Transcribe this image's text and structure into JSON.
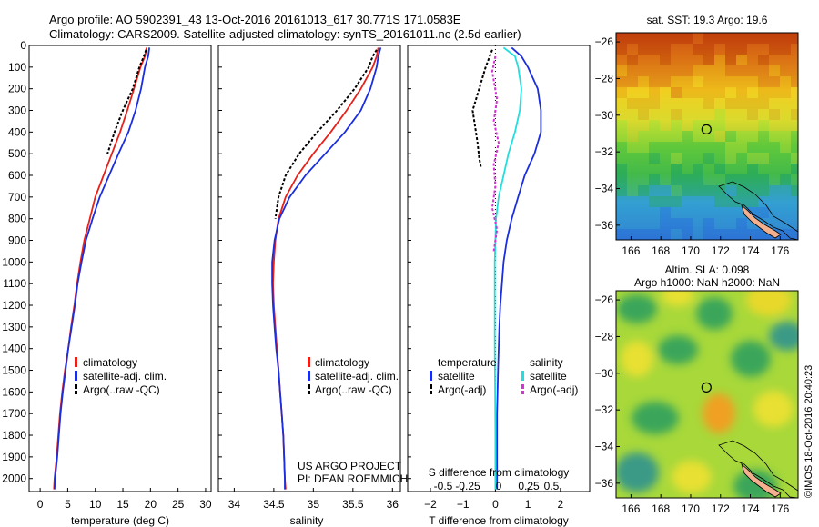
{
  "header": {
    "line1": "Argo profile: AO 5902391_43 13-Oct-2016 20161013_617 30.771S 171.0583E",
    "line2": "Climatology: CARS2009. Satellite-adjusted climatology: synTS_20161011.nc (2.5d earlier)"
  },
  "credits": {
    "project": "US ARGO PROJECT",
    "pi": "PI: DEAN ROEMMICH",
    "stamp": "©IMOS 18-Oct-2016 20:40:23"
  },
  "colors": {
    "climatology": "#e8201a",
    "satellite": "#1a2ee0",
    "argo": "#000000",
    "argo_salinity_diff": "#d633d6",
    "satellite_salinity_diff": "#22dede",
    "coast": "#f2b08e"
  },
  "chart_data": [
    {
      "type": "line",
      "id": "temperature",
      "xlabel": "temperature (deg C)",
      "ylabel": "",
      "xlim": [
        -2,
        31
      ],
      "ylim": [
        2060,
        0
      ],
      "xticks": [
        0,
        5,
        10,
        15,
        20,
        25,
        30
      ],
      "yticks": [
        0,
        100,
        200,
        300,
        400,
        500,
        600,
        700,
        800,
        900,
        1000,
        1100,
        1200,
        1300,
        1400,
        1500,
        1600,
        1700,
        1800,
        1900,
        2000
      ],
      "y_inverted": true,
      "legend": [
        "climatology",
        "satellite-adj. clim.",
        "Argo(..raw -QC)"
      ],
      "legend_position": "bottom-center",
      "series": [
        {
          "name": "climatology",
          "color": "#e8201a",
          "style": "solid",
          "x": [
            19.3,
            19.0,
            18.2,
            17.0,
            15.8,
            14.5,
            13.0,
            11.5,
            10.0,
            9.0,
            8.0,
            7.3,
            6.7,
            6.2,
            5.6,
            5.1,
            4.5,
            4.0,
            3.6,
            3.3,
            3.0,
            2.8,
            2.6,
            2.5
          ],
          "y": [
            10,
            50,
            100,
            200,
            300,
            400,
            500,
            600,
            700,
            800,
            900,
            1000,
            1100,
            1200,
            1300,
            1400,
            1500,
            1600,
            1700,
            1800,
            1900,
            1950,
            2000,
            2050
          ]
        },
        {
          "name": "satellite-adj. clim.",
          "color": "#1a2ee0",
          "style": "solid",
          "x": [
            19.8,
            19.6,
            19.0,
            18.3,
            17.3,
            16.0,
            14.2,
            12.5,
            10.8,
            9.5,
            8.3,
            7.5,
            6.8,
            6.3,
            5.7,
            5.1,
            4.6,
            4.1,
            3.7,
            3.4,
            3.1,
            2.9,
            2.7,
            2.6
          ],
          "y": [
            10,
            50,
            100,
            200,
            300,
            400,
            500,
            600,
            700,
            800,
            900,
            1000,
            1100,
            1200,
            1300,
            1400,
            1500,
            1600,
            1700,
            1800,
            1900,
            1950,
            2000,
            2050
          ]
        },
        {
          "name": "Argo(..raw -QC)",
          "color": "#000000",
          "style": "dashed",
          "x": [
            19.2,
            18.8,
            18.0,
            16.8,
            15.0,
            13.5,
            12.2
          ],
          "y": [
            20,
            50,
            100,
            200,
            300,
            400,
            500
          ]
        }
      ]
    },
    {
      "type": "line",
      "id": "salinity",
      "xlabel": "salinity",
      "ylabel": "",
      "xlim": [
        33.8,
        36.1
      ],
      "ylim": [
        2060,
        0
      ],
      "xticks": [
        34,
        34.5,
        35,
        35.5,
        36
      ],
      "xtick_labels": [
        "34",
        "34.5",
        "35",
        "35.5",
        "36"
      ],
      "y_inverted": true,
      "legend": [
        "climatology",
        "satellite-adj. clim.",
        "Argo(..raw -QC)"
      ],
      "legend_position": "bottom-center",
      "series": [
        {
          "name": "climatology",
          "color": "#e8201a",
          "style": "solid",
          "x": [
            35.82,
            35.8,
            35.75,
            35.6,
            35.42,
            35.22,
            35.0,
            34.8,
            34.65,
            34.56,
            34.52,
            34.5,
            34.49,
            34.5,
            34.52,
            34.54,
            34.56,
            34.58,
            34.6,
            34.62,
            34.63,
            34.64,
            34.65
          ],
          "y": [
            10,
            50,
            100,
            200,
            300,
            400,
            500,
            600,
            700,
            800,
            900,
            1000,
            1100,
            1200,
            1300,
            1400,
            1500,
            1600,
            1700,
            1800,
            1900,
            2000,
            2050
          ]
        },
        {
          "name": "satellite-adj. clim.",
          "color": "#1a2ee0",
          "style": "solid",
          "x": [
            35.85,
            35.82,
            35.8,
            35.72,
            35.6,
            35.4,
            35.15,
            34.9,
            34.7,
            34.57,
            34.51,
            34.48,
            34.48,
            34.49,
            34.51,
            34.53,
            34.56,
            34.58,
            34.6,
            34.62,
            34.63,
            34.64,
            34.64
          ],
          "y": [
            10,
            50,
            100,
            200,
            300,
            400,
            500,
            600,
            700,
            800,
            900,
            1000,
            1100,
            1200,
            1300,
            1400,
            1500,
            1600,
            1700,
            1800,
            1900,
            2000,
            2050
          ]
        },
        {
          "name": "Argo(..raw -QC)",
          "color": "#000000",
          "style": "dashed",
          "x": [
            35.8,
            35.75,
            35.7,
            35.52,
            35.3,
            35.05,
            34.82,
            34.65,
            34.56,
            34.52
          ],
          "y": [
            20,
            50,
            100,
            200,
            300,
            400,
            500,
            600,
            700,
            800
          ]
        }
      ]
    },
    {
      "type": "line",
      "id": "difference",
      "xlabel": "T difference from climatology",
      "xlabel_top": "S difference from climatology",
      "xlim": [
        -2.7,
        2.9
      ],
      "ylim": [
        2060,
        0
      ],
      "xticks": [
        -2,
        -1,
        0,
        1,
        2
      ],
      "xtick_labels": [
        "−2",
        "−1",
        "0",
        "1",
        "2"
      ],
      "sticks": [
        "-0.5",
        "-0.25",
        "0",
        "0.25",
        "0.5"
      ],
      "y_inverted": true,
      "legend_temperature": [
        "temperature",
        "satellite",
        "Argo(-adj)"
      ],
      "legend_salinity": [
        "salinity",
        "satellite",
        "Argo(-adj)"
      ],
      "legend_position": "bottom-center",
      "series": [
        {
          "name": "satellite",
          "color": "#1a2ee0",
          "style": "solid",
          "x": [
            0.5,
            0.8,
            1.0,
            1.3,
            1.4,
            1.4,
            1.2,
            0.9,
            0.7,
            0.5,
            0.35,
            0.25,
            0.2,
            0.15,
            0.12,
            0.1,
            0.08,
            0.05,
            0.05,
            0.05
          ],
          "y": [
            10,
            50,
            100,
            200,
            300,
            400,
            500,
            600,
            700,
            800,
            900,
            1000,
            1100,
            1200,
            1300,
            1400,
            1500,
            1700,
            1900,
            2050
          ]
        },
        {
          "name": "Argo(-adj)",
          "color": "#000000",
          "style": "dashed",
          "x": [
            -0.1,
            -0.3,
            -0.5,
            -0.7,
            -0.6,
            -0.55,
            -0.5,
            -0.45
          ],
          "y": [
            20,
            100,
            200,
            300,
            400,
            450,
            520,
            560
          ]
        },
        {
          "name": "satellite",
          "color": "#22dede",
          "style": "solid",
          "x": [
            0.25,
            0.6,
            0.7,
            0.8,
            0.75,
            0.6,
            0.4,
            0.25,
            0.1,
            0.02,
            0.0,
            -0.02,
            -0.02,
            -0.02,
            -0.01,
            0.0,
            0.0,
            0.0
          ],
          "y": [
            10,
            50,
            100,
            200,
            300,
            400,
            500,
            600,
            700,
            800,
            900,
            1000,
            1200,
            1400,
            1600,
            1800,
            1900,
            2050
          ]
        },
        {
          "name": "Argo(-adj)",
          "color": "#d633d6",
          "style": "dashed",
          "x": [
            0.0,
            -0.1,
            0.05,
            -0.05,
            0.1,
            -0.05,
            0.0,
            -0.1,
            0.05,
            -0.05
          ],
          "y": [
            50,
            120,
            250,
            350,
            450,
            550,
            650,
            750,
            850,
            950
          ]
        }
      ]
    },
    {
      "type": "heatmap",
      "id": "sst_map",
      "title": "sat. SST: 19.3 Argo: 19.6",
      "xticks": [
        166,
        168,
        170,
        172,
        174,
        176
      ],
      "yticks": [
        -26,
        -28,
        -30,
        -32,
        -34,
        -36
      ],
      "xlim": [
        165,
        177.2
      ],
      "ylim": [
        -36.8,
        -25.5
      ],
      "float_position": {
        "lon": 171.0583,
        "lat": -30.771
      }
    },
    {
      "type": "heatmap",
      "id": "sla_map",
      "title": "Altim. SLA: 0.098",
      "subtitle": "Argo h1000: NaN h2000: NaN",
      "xticks": [
        166,
        168,
        170,
        172,
        174,
        176
      ],
      "yticks": [
        -26,
        -28,
        -30,
        -32,
        -34,
        -36
      ],
      "xlim": [
        165,
        177.2
      ],
      "ylim": [
        -36.8,
        -25.5
      ],
      "float_position": {
        "lon": 171.0583,
        "lat": -30.771
      }
    }
  ]
}
